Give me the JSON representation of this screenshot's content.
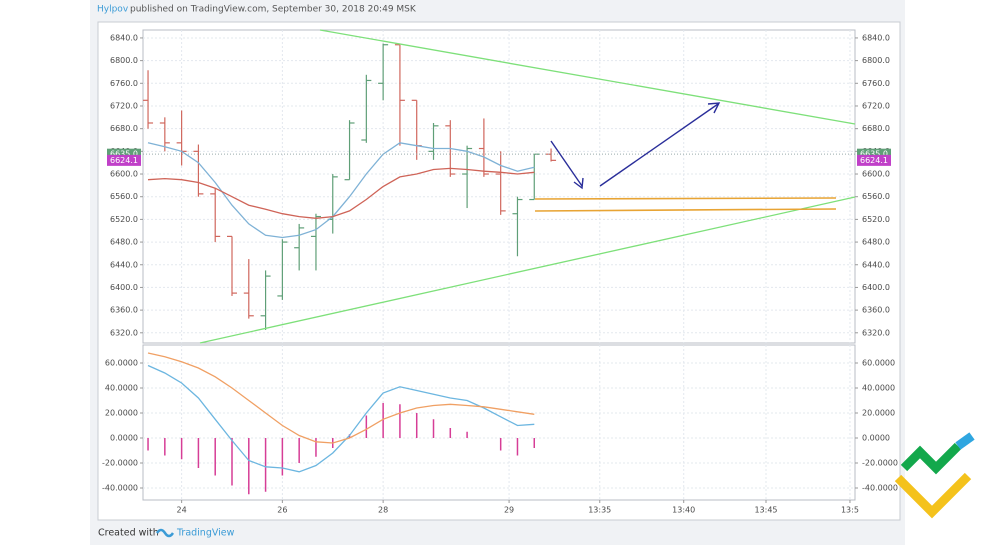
{
  "header": {
    "author": "Hylpov",
    "text": "published on TradingView.com, September 30, 2018 20:49 MSK"
  },
  "footer": {
    "text": "Created with",
    "brand": "TradingView"
  },
  "chart_data": [
    {
      "type": "ohlc",
      "up_color": "#5f9f77",
      "down_color": "#d0675d",
      "open": [
        6730,
        6690,
        6655,
        6640,
        6565,
        6490,
        6390,
        6350,
        6385,
        6470,
        6490,
        6520,
        6590,
        6660,
        6760,
        6828,
        6730,
        6640,
        6685,
        6600,
        6645,
        6600,
        6530,
        6555,
        6635
      ],
      "high": [
        6783,
        6700,
        6712,
        6652,
        6575,
        6490,
        6450,
        6430,
        6485,
        6512,
        6530,
        6600,
        6695,
        6775,
        6830,
        6828,
        6730,
        6690,
        6695,
        6650,
        6698,
        6640,
        6560,
        6635,
        6645
      ],
      "low": [
        6680,
        6640,
        6615,
        6560,
        6480,
        6385,
        6345,
        6325,
        6378,
        6430,
        6430,
        6495,
        6590,
        6655,
        6730,
        6650,
        6625,
        6625,
        6595,
        6540,
        6595,
        6528,
        6455,
        6555,
        6622
      ],
      "close": [
        6690,
        6655,
        6640,
        6565,
        6490,
        6390,
        6350,
        6420,
        6480,
        6505,
        6525,
        6595,
        6690,
        6765,
        6828,
        6730,
        6650,
        6685,
        6600,
        6645,
        6600,
        6535,
        6555,
        6635,
        6624.1
      ],
      "series": [
        {
          "color": "#7fb2d6",
          "values": [
            6655,
            6648,
            6640,
            6620,
            6585,
            6545,
            6512,
            6492,
            6488,
            6492,
            6502,
            6525,
            6560,
            6600,
            6635,
            6655,
            6650,
            6645,
            6645,
            6640,
            6630,
            6615,
            6605,
            6612,
            null
          ]
        },
        {
          "color": "#cf6458",
          "values": [
            6590,
            6592,
            6590,
            6585,
            6575,
            6560,
            6545,
            6538,
            6530,
            6525,
            6522,
            6525,
            6535,
            6555,
            6578,
            6595,
            6600,
            6608,
            6610,
            6608,
            6605,
            6603,
            6600,
            6603,
            null
          ]
        }
      ],
      "price_labels": [
        {
          "value": 6635,
          "label": "6635.0",
          "color": "#5f9f77"
        },
        {
          "value": 6624.1,
          "label": "6624.1",
          "color": "#c040c8"
        }
      ],
      "xlim": [
        -0.3,
        42.1
      ],
      "ylim": [
        6302,
        6854
      ],
      "yticks": [
        {
          "value": 6320,
          "label": "6320.0"
        },
        {
          "value": 6360,
          "label": "6360.0"
        },
        {
          "value": 6400,
          "label": "6400.0"
        },
        {
          "value": 6440,
          "label": "6440.0"
        },
        {
          "value": 6480,
          "label": "6480.0"
        },
        {
          "value": 6520,
          "label": "6520.0"
        },
        {
          "value": 6560,
          "label": "6560.0"
        },
        {
          "value": 6600,
          "label": "6600.0"
        },
        {
          "value": 6640,
          "label": "6640.0"
        },
        {
          "value": 6680,
          "label": "6680.0"
        },
        {
          "value": 6720,
          "label": "6720.0"
        },
        {
          "value": 6760,
          "label": "6760.0"
        },
        {
          "value": 6800,
          "label": "6800.0"
        },
        {
          "value": 6840,
          "label": "6840.0"
        }
      ],
      "grid": true
    },
    {
      "type": "macd",
      "series": [
        {
          "color": "#6cb6e0",
          "values": [
            58,
            52,
            44,
            32,
            15,
            -2,
            -18,
            -23,
            -24,
            -27,
            -22,
            -12,
            2,
            20,
            36,
            41,
            38,
            35,
            32,
            30,
            24,
            17,
            10,
            11
          ]
        },
        {
          "color": "#f0a064",
          "values": [
            68,
            65,
            61,
            56,
            49,
            40,
            30,
            20,
            10,
            2,
            -3,
            -4,
            0,
            7,
            15,
            20,
            24,
            26,
            27,
            26,
            25,
            23,
            21,
            19
          ]
        }
      ],
      "histogram": {
        "color": "#d63d96",
        "values": [
          -10,
          -14,
          -17,
          -24,
          -30,
          -38,
          -45,
          -43,
          -30,
          -20,
          -15,
          -8,
          3,
          18,
          28,
          27,
          20,
          15,
          8,
          5,
          null,
          -10,
          -14,
          -8
        ]
      },
      "xlim": [
        -0.3,
        42.1
      ],
      "ylim": [
        -49.6,
        74.4
      ],
      "yticks": [
        {
          "value": -40,
          "label": "-40.0000"
        },
        {
          "value": -20,
          "label": "-20.0000"
        },
        {
          "value": 0,
          "label": "0.0000"
        },
        {
          "value": 20,
          "label": "20.0000"
        },
        {
          "value": 40,
          "label": "40.0000"
        },
        {
          "value": 60,
          "label": "60.0000"
        }
      ],
      "xticks": [
        {
          "value": 2,
          "label": "24"
        },
        {
          "value": 8,
          "label": "26"
        },
        {
          "value": 14,
          "label": "28"
        },
        {
          "value": 21.5,
          "label": "29"
        },
        {
          "value": 26.9,
          "label": "13:35"
        },
        {
          "value": 31.9,
          "label": "13:40"
        },
        {
          "value": 36.8,
          "label": "13:45"
        },
        {
          "value": 41.8,
          "label": "13:5"
        }
      ],
      "grid": true
    }
  ]
}
